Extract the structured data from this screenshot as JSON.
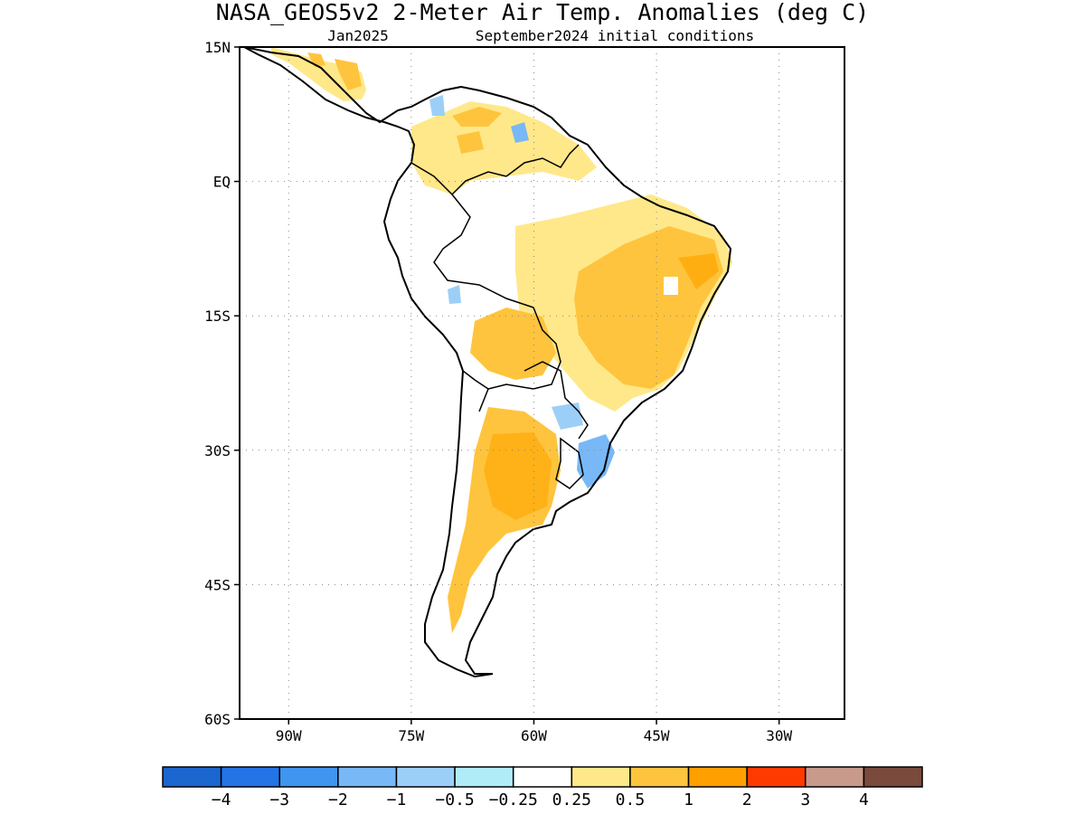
{
  "title": "NASA_GEOS5v2 2-Meter Air Temp. Anomalies (deg C)",
  "subtitle_left": "Jan2025",
  "subtitle_right": "September2024 initial conditions",
  "map": {
    "lon_range": [
      -96,
      -22
    ],
    "lat_range": [
      -60,
      15
    ],
    "lat_ticks": [
      {
        "value": 15,
        "label": "15N"
      },
      {
        "value": 0,
        "label": "EQ"
      },
      {
        "value": -15,
        "label": "15S"
      },
      {
        "value": -30,
        "label": "30S"
      },
      {
        "value": -45,
        "label": "45S"
      },
      {
        "value": -60,
        "label": "60S"
      }
    ],
    "lon_ticks": [
      {
        "value": -90,
        "label": "90W"
      },
      {
        "value": -75,
        "label": "75W"
      },
      {
        "value": -60,
        "label": "60W"
      },
      {
        "value": -45,
        "label": "45W"
      },
      {
        "value": -30,
        "label": "30W"
      }
    ],
    "grid": "dotted"
  },
  "colorbar": {
    "colors": [
      "#1b66cf",
      "#2474e6",
      "#3f95f0",
      "#78b8f6",
      "#9ccff8",
      "#b0ecf8",
      "#ffffff",
      "#ffe88a",
      "#ffc43d",
      "#ff9f00",
      "#ff3a00",
      "#c89a8c",
      "#7a4a3c"
    ],
    "labels": [
      "−4",
      "−3",
      "−2",
      "−1",
      "−0.5",
      "−0.25",
      "0.25",
      "0.5",
      "1",
      "2",
      "3",
      "4"
    ]
  }
}
